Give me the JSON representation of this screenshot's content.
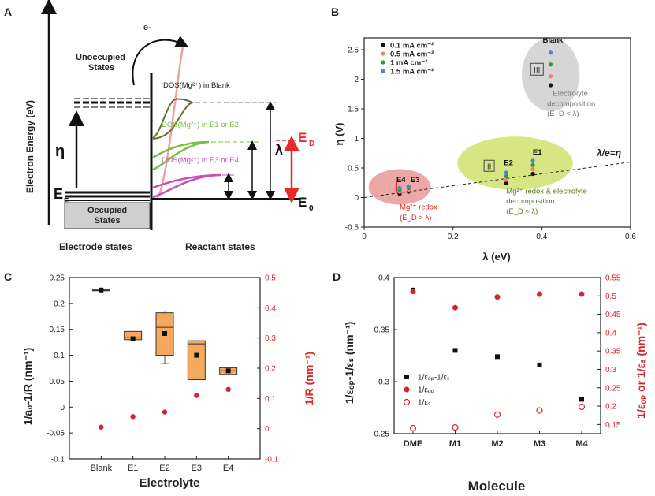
{
  "chart_data": [
    {
      "id": "A",
      "type": "diagram",
      "panel_label": "A",
      "y_axis_label": "Electron Energy (eV)",
      "electron_label": "e-",
      "unoccupied_label": [
        "Unoccupied",
        "States"
      ],
      "occupied_label": [
        "Occupied",
        "States"
      ],
      "eta_label": "η",
      "ef_label": "E",
      "ef_sub": "F",
      "lambda_label": "λ",
      "ed_label": "E",
      "ed_sub": "D",
      "e0_label": "E",
      "e0_sub": "0",
      "dos_labels": [
        "DOS(Mg²⁺) in Blank",
        "DOS(Mg²⁺) in E1 or E2",
        "DOS(Mg²⁺) in E3 or E4"
      ],
      "electrode_label": "Electrode states",
      "reactant_label": "Reactant states",
      "colors": {
        "blank": "#6b6b3a",
        "e1e2": "#7ac143",
        "e3e4": "#c84fb8",
        "red": "#e8292b",
        "pink": "#f2a0a0"
      }
    },
    {
      "id": "B",
      "type": "scatter",
      "panel_label": "B",
      "xlabel": "λ (eV)",
      "ylabel": "η (V)",
      "xlim": [
        0,
        0.6
      ],
      "ylim": [
        -0.5,
        2.7
      ],
      "xticks": [
        0,
        0.2,
        0.4,
        0.6
      ],
      "yticks": [
        -0.5,
        0,
        0.5,
        1,
        1.5,
        2,
        2.5
      ],
      "xtick_labels": [
        "0",
        "0.2",
        "0.4",
        "0.6"
      ],
      "ytick_labels": [
        "-0.5",
        "0",
        "0.5",
        "1",
        "1.5",
        "2",
        "2.5"
      ],
      "legend": [
        {
          "label": "0.1 mA cm⁻²",
          "color": "#111111"
        },
        {
          "label": "0.5 mA cm⁻²",
          "color": "#f08080"
        },
        {
          "label": "1 mA cm⁻²",
          "color": "#2ca02c"
        },
        {
          "label": "1.5 mA cm⁻²",
          "color": "#5b7bd6"
        }
      ],
      "line_label": "λ/e=η",
      "regions": [
        {
          "roman": "I",
          "text": [
            "Mg²⁺ redox",
            "(E_D > λ)"
          ],
          "color": "#e88a8a",
          "cx": 0.08,
          "cy": 0.18,
          "rx": 0.07,
          "ry": 0.3
        },
        {
          "roman": "II",
          "text": [
            "Mg²⁺ redox & electrolyte",
            "decomposition",
            "(E_D ≈ λ)"
          ],
          "color": "#c9dc5a",
          "cx": 0.34,
          "cy": 0.58,
          "rx": 0.13,
          "ry": 0.45
        },
        {
          "roman": "III",
          "text": [
            "Electrolyte",
            "decomposition",
            "(E_D < λ)"
          ],
          "color": "#c8c8c8",
          "cx": 0.42,
          "cy": 2.08,
          "rx": 0.065,
          "ry": 0.62
        }
      ],
      "point_labels": [
        {
          "text": "E4",
          "x": 0.083,
          "y": 0.26
        },
        {
          "text": "E3",
          "x": 0.115,
          "y": 0.26
        },
        {
          "text": "E2",
          "x": 0.325,
          "y": 0.55
        },
        {
          "text": "E1",
          "x": 0.39,
          "y": 0.73
        },
        {
          "text": "Blank",
          "x": 0.425,
          "y": 2.62
        }
      ],
      "series": [
        {
          "name": "0.1 mA cm⁻²",
          "color": "#111111",
          "points": [
            [
              0.08,
              0.06
            ],
            [
              0.1,
              0.1
            ],
            [
              0.32,
              0.24
            ],
            [
              0.38,
              0.4
            ],
            [
              0.42,
              1.9
            ]
          ]
        },
        {
          "name": "0.5 mA cm⁻²",
          "color": "#f08080",
          "points": [
            [
              0.08,
              0.1
            ],
            [
              0.1,
              0.13
            ],
            [
              0.32,
              0.3
            ],
            [
              0.38,
              0.48
            ],
            [
              0.42,
              2.05
            ]
          ]
        },
        {
          "name": "1 mA cm⁻²",
          "color": "#2ca02c",
          "points": [
            [
              0.08,
              0.13
            ],
            [
              0.1,
              0.16
            ],
            [
              0.32,
              0.36
            ],
            [
              0.38,
              0.55
            ],
            [
              0.42,
              2.25
            ]
          ]
        },
        {
          "name": "1.5 mA cm⁻²",
          "color": "#5b7bd6",
          "points": [
            [
              0.08,
              0.16
            ],
            [
              0.1,
              0.19
            ],
            [
              0.32,
              0.42
            ],
            [
              0.38,
              0.62
            ],
            [
              0.42,
              2.45
            ]
          ]
        }
      ]
    },
    {
      "id": "C",
      "type": "box",
      "panel_label": "C",
      "xlabel": "Electrolyte",
      "ylabel": "1/a₀-1/R (nm⁻¹)",
      "y2label": "1/R (nm⁻¹)",
      "categories": [
        "Blank",
        "E1",
        "E2",
        "E3",
        "E4"
      ],
      "ylim": [
        -0.1,
        0.25
      ],
      "y2lim": [
        -0.1,
        0.5
      ],
      "yticks": [
        -0.1,
        -0.05,
        0,
        0.05,
        0.1,
        0.15,
        0.2,
        0.25
      ],
      "ytick_labels": [
        "-0.1",
        "-0.05",
        "0",
        "0.05",
        "0.1",
        "0.15",
        "0.2",
        "0.25"
      ],
      "y2ticks": [
        -0.1,
        0,
        0.1,
        0.2,
        0.3,
        0.4,
        0.5
      ],
      "y2tick_labels": [
        "-0.1",
        "0",
        "0.1",
        "0.2",
        "0.3",
        "0.4",
        "0.5"
      ],
      "boxes": [
        {
          "q1": 0.226,
          "q3": 0.226,
          "median": 0.226,
          "mean": 0.226,
          "min": 0.226,
          "max": 0.226
        },
        {
          "q1": 0.13,
          "q3": 0.146,
          "median": 0.134,
          "mean": 0.132,
          "min": 0.13,
          "max": 0.146
        },
        {
          "q1": 0.1,
          "q3": 0.182,
          "median": 0.154,
          "mean": 0.142,
          "min": 0.084,
          "max": 0.184
        },
        {
          "q1": 0.053,
          "q3": 0.128,
          "median": 0.122,
          "mean": 0.1,
          "min": 0.053,
          "max": 0.128
        },
        {
          "q1": 0.063,
          "q3": 0.076,
          "median": 0.07,
          "mean": 0.07,
          "min": 0.063,
          "max": 0.076
        }
      ],
      "box_color": "#f4a95e",
      "red_values": [
        0.005,
        0.04,
        0.055,
        0.11,
        0.13
      ],
      "red_color": "#d62728"
    },
    {
      "id": "D",
      "type": "scatter",
      "panel_label": "D",
      "xlabel": "Molecule",
      "ylabel": "1/εₒₚ-1/εₛ (nm⁻¹)",
      "y2label": "1/εₒₚ or 1/εₛ (nm⁻¹)",
      "categories": [
        "DME",
        "M1",
        "M2",
        "M3",
        "M4"
      ],
      "ylim": [
        0.25,
        0.4
      ],
      "y2lim": [
        0.125,
        0.55
      ],
      "yticks": [
        0.25,
        0.3,
        0.35,
        0.4
      ],
      "ytick_labels": [
        "0.25",
        "0.3",
        "0.35",
        "0.4"
      ],
      "y2ticks": [
        0.15,
        0.2,
        0.25,
        0.3,
        0.35,
        0.4,
        0.45,
        0.5,
        0.55
      ],
      "y2tick_labels": [
        "0.15",
        "0.2",
        "0.25",
        "0.3",
        "0.35",
        "0.4",
        "0.45",
        "0.5",
        "0.55"
      ],
      "legend": [
        {
          "label": "1/εₒₚ-1/εₛ",
          "marker": "square",
          "color": "#111111"
        },
        {
          "label": "1/εₒₚ",
          "marker": "dot",
          "color": "#d62728"
        },
        {
          "label": "1/εₛ",
          "marker": "circle",
          "color": "#d62728"
        }
      ],
      "black_values": [
        0.388,
        0.33,
        0.324,
        0.316,
        0.283
      ],
      "red_filled": [
        0.512,
        0.468,
        0.497,
        0.505,
        0.505
      ],
      "red_open": [
        0.14,
        0.142,
        0.177,
        0.188,
        0.198
      ]
    }
  ]
}
